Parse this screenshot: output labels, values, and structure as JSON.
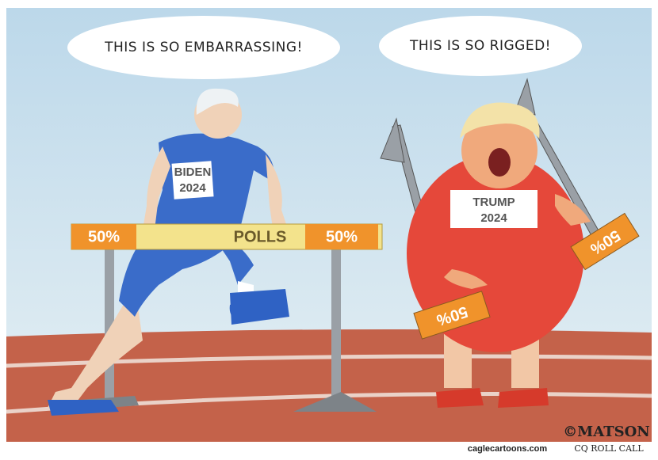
{
  "speech_bubbles": [
    {
      "text": "THIS IS SO EMBARRASSING!"
    },
    {
      "text": "THIS IS SO RIGGED!"
    }
  ],
  "left_runner": {
    "name": "BIDEN",
    "year": "2024"
  },
  "hurdle": {
    "left_label": "50%",
    "center_label": "POLLS",
    "right_label": "50%"
  },
  "right_runner": {
    "name": "TRUMP",
    "year": "2024"
  },
  "broken_hurdle": {
    "labels": [
      "50%",
      "50%"
    ]
  },
  "credits": {
    "artist": "©MATSON",
    "site": "caglecartoons.com",
    "publication": "CQ ROLL CALL"
  }
}
